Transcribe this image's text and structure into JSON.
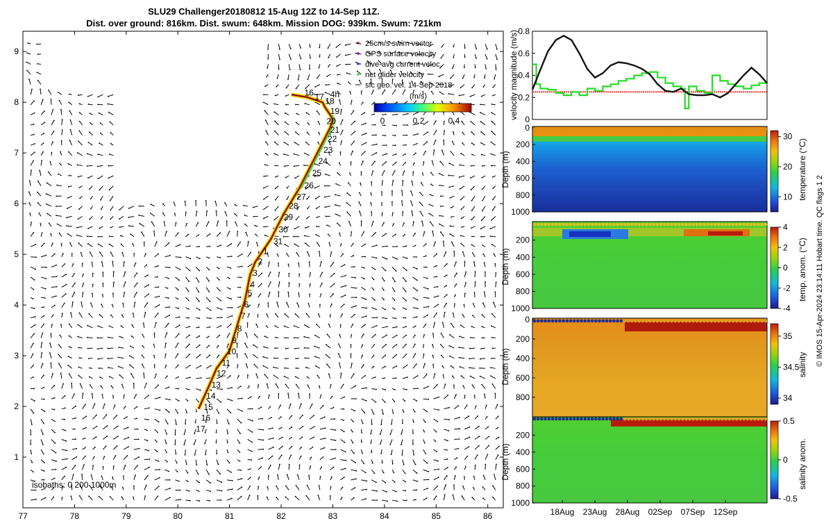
{
  "title": {
    "line1": "SLU29 Challenger20180812 15-Aug 12Z to 14-Sep 11Z.",
    "line2": "Dist. over ground: 816km. Dist. swum: 648km. Mission DOG: 939km. Swum: 721km"
  },
  "footer_text": "© IMOS 15-Apr-2024 23:14:11 Hobart time. QC flags 1  2",
  "colors": {
    "track": "#8b1a1a",
    "track_edge": "#ffe000",
    "net_velocity": "#22dd22",
    "reference": "#ff0000",
    "current_line": "#000000"
  },
  "chart_data": [
    {
      "type": "scatter",
      "name": "map",
      "xlim": [
        77,
        86.3
      ],
      "ylim": [
        0,
        9.4
      ],
      "xticks": [
        "77",
        "78",
        "79",
        "80",
        "81",
        "82",
        "83",
        "84",
        "85",
        "86"
      ],
      "yticks": [
        "1",
        "2",
        "3",
        "4",
        "5",
        "6",
        "7",
        "8",
        "9"
      ],
      "legend": {
        "items": [
          "25cm/s swim vector",
          "GPS surface velocity",
          "dive-avg current veloc.",
          "net glider velocity",
          "sfc geo. vel. 14-Sep-2018"
        ],
        "colorbar_label": "(m/s)",
        "colorbar_ticks": [
          "0",
          "0.2",
          "0.4"
        ]
      },
      "isobath_label": "isobaths: 0  200  1000m",
      "track_x": [
        80.4,
        80.6,
        80.75,
        81.0,
        81.15,
        81.3,
        81.4,
        81.5,
        81.8,
        82.05,
        82.35,
        82.6,
        82.8,
        82.95,
        83.0,
        82.95,
        82.85,
        82.8,
        82.5,
        82.2
      ],
      "track_y": [
        1.95,
        2.4,
        2.75,
        3.1,
        3.6,
        4.1,
        4.6,
        4.85,
        5.3,
        5.8,
        6.3,
        6.8,
        7.2,
        7.5,
        7.65,
        7.75,
        7.9,
        8.0,
        8.1,
        8.15
      ],
      "track_labels": [
        {
          "text": "16",
          "x": 82.45,
          "y": 8.13
        },
        {
          "text": "17",
          "x": 82.65,
          "y": 8.05
        },
        {
          "text": "4h",
          "x": 82.95,
          "y": 8.1
        },
        {
          "text": "18",
          "x": 82.85,
          "y": 7.97
        },
        {
          "text": "19",
          "x": 82.95,
          "y": 7.77
        },
        {
          "text": "20",
          "x": 82.88,
          "y": 7.57
        },
        {
          "text": "21",
          "x": 82.95,
          "y": 7.4
        },
        {
          "text": "22",
          "x": 82.9,
          "y": 7.22
        },
        {
          "text": "23",
          "x": 82.82,
          "y": 7.0
        },
        {
          "text": "24",
          "x": 82.72,
          "y": 6.78
        },
        {
          "text": "25",
          "x": 82.6,
          "y": 6.55
        },
        {
          "text": "26",
          "x": 82.45,
          "y": 6.3
        },
        {
          "text": "27",
          "x": 82.3,
          "y": 6.08
        },
        {
          "text": "28",
          "x": 82.15,
          "y": 5.9
        },
        {
          "text": "29",
          "x": 82.05,
          "y": 5.68
        },
        {
          "text": "30",
          "x": 81.95,
          "y": 5.43
        },
        {
          "text": "31",
          "x": 81.85,
          "y": 5.2
        },
        {
          "text": "1",
          "x": 81.65,
          "y": 5.0
        },
        {
          "text": "2",
          "x": 81.55,
          "y": 4.8
        },
        {
          "text": "3",
          "x": 81.45,
          "y": 4.58
        },
        {
          "text": "4",
          "x": 81.4,
          "y": 4.35
        },
        {
          "text": "5",
          "x": 81.35,
          "y": 4.18
        },
        {
          "text": "6",
          "x": 81.28,
          "y": 3.95
        },
        {
          "text": "7",
          "x": 81.22,
          "y": 3.73
        },
        {
          "text": "8",
          "x": 81.15,
          "y": 3.48
        },
        {
          "text": "9",
          "x": 81.05,
          "y": 3.25
        },
        {
          "text": "10",
          "x": 80.95,
          "y": 3.03
        },
        {
          "text": "11",
          "x": 80.85,
          "y": 2.8
        },
        {
          "text": "12",
          "x": 80.75,
          "y": 2.6
        },
        {
          "text": "13",
          "x": 80.65,
          "y": 2.37
        },
        {
          "text": "14",
          "x": 80.55,
          "y": 2.15
        },
        {
          "text": "15",
          "x": 80.5,
          "y": 1.93
        },
        {
          "text": "16",
          "x": 80.45,
          "y": 1.72
        },
        {
          "text": "17",
          "x": 80.35,
          "y": 1.5
        }
      ]
    },
    {
      "type": "line",
      "name": "velocity",
      "ylabel": "velocity magnitude (m/s)",
      "ylim": [
        0,
        0.8
      ],
      "yticks": [
        "0",
        "0.2",
        "0.4",
        "0.6",
        "0.8"
      ],
      "xlim": [
        0,
        30
      ],
      "series": [
        {
          "name": "dive-avg current",
          "x": [
            0,
            1,
            2,
            3,
            4,
            5,
            6,
            7,
            8,
            9,
            10,
            11,
            12,
            13,
            14,
            15,
            16,
            17,
            18,
            19,
            20,
            21,
            22,
            23,
            24,
            25,
            26,
            27,
            28,
            29,
            30
          ],
          "values": [
            0.27,
            0.45,
            0.62,
            0.72,
            0.76,
            0.72,
            0.6,
            0.46,
            0.38,
            0.42,
            0.49,
            0.52,
            0.51,
            0.49,
            0.46,
            0.41,
            0.32,
            0.26,
            0.25,
            0.28,
            0.23,
            0.22,
            0.22,
            0.23,
            0.2,
            0.24,
            0.32,
            0.4,
            0.47,
            0.41,
            0.33
          ]
        },
        {
          "name": "net glider velocity",
          "x": [
            0,
            0.5,
            1,
            2,
            3,
            4,
            5,
            6,
            7,
            8,
            9,
            10,
            11,
            12,
            13,
            14,
            15,
            16,
            17,
            18,
            19,
            19.5,
            20,
            21,
            22,
            23,
            24,
            25,
            26,
            27,
            28,
            29,
            30
          ],
          "values": [
            0.5,
            0.32,
            0.28,
            0.27,
            0.24,
            0.22,
            0.25,
            0.22,
            0.28,
            0.26,
            0.3,
            0.32,
            0.35,
            0.37,
            0.4,
            0.42,
            0.43,
            0.38,
            0.33,
            0.3,
            0.28,
            0.1,
            0.3,
            0.26,
            0.24,
            0.4,
            0.35,
            0.32,
            0.3,
            0.28,
            0.31,
            0.33,
            0.34
          ]
        },
        {
          "name": "reference",
          "x": [
            0,
            30
          ],
          "values": [
            0.25,
            0.25
          ]
        }
      ]
    },
    {
      "type": "heatmap",
      "name": "temperature",
      "ylabel": "Depth (m)",
      "ylim": [
        0,
        1000
      ],
      "yticks": [
        "0",
        "200",
        "400",
        "600",
        "800",
        "1000"
      ],
      "colorbar_label": "temperature (°C)",
      "clim": [
        5,
        32
      ],
      "cticks": [
        "10",
        "20",
        "30"
      ],
      "xticks": [
        "18Aug",
        "23Aug",
        "28Aug",
        "02Sep",
        "07Sep",
        "12Sep"
      ]
    },
    {
      "type": "heatmap",
      "name": "temperature anomaly",
      "ylabel": "Depth (m)",
      "ylim": [
        0,
        1000
      ],
      "yticks": [
        "200",
        "400",
        "600",
        "800",
        "1000"
      ],
      "colorbar_label": "temp. anom. (°C)",
      "clim": [
        -4,
        4
      ],
      "cticks": [
        "-4",
        "-2",
        "0",
        "2",
        "4"
      ],
      "xticks": [
        "18Aug",
        "23Aug",
        "28Aug",
        "02Sep",
        "07Sep",
        "12Sep"
      ]
    },
    {
      "type": "heatmap",
      "name": "salinity",
      "ylabel": "Depth (m)",
      "ylim": [
        0,
        1000
      ],
      "yticks": [
        "0",
        "200",
        "400",
        "600",
        "800"
      ],
      "colorbar_label": "salinity",
      "clim": [
        33.9,
        35.2
      ],
      "cticks": [
        "34",
        "34.5",
        "35"
      ],
      "xticks": [
        "18Aug",
        "23Aug",
        "28Aug",
        "02Sep",
        "07Sep",
        "12Sep"
      ]
    },
    {
      "type": "heatmap",
      "name": "salinity anomaly",
      "ylabel": "Depth (m)",
      "ylim": [
        0,
        1000
      ],
      "yticks": [
        "200",
        "400",
        "600",
        "800",
        "1000"
      ],
      "colorbar_label": "salinity anom.",
      "clim": [
        -0.5,
        0.5
      ],
      "cticks": [
        "-0.5",
        "0",
        "0.5"
      ],
      "xticks": [
        "18Aug",
        "23Aug",
        "28Aug",
        "02Sep",
        "07Sep",
        "12Sep"
      ]
    }
  ]
}
